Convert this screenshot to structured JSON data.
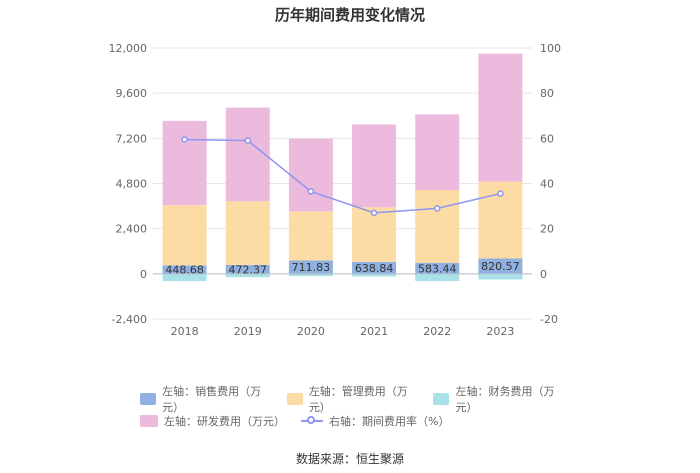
{
  "chart_data": {
    "type": "bar",
    "title": "历年期间费用变化情况",
    "categories": [
      "2018",
      "2019",
      "2020",
      "2021",
      "2022",
      "2023"
    ],
    "left_axis": {
      "min": -2400,
      "max": 12000,
      "ticks": [
        "12,000",
        "9,600",
        "7,200",
        "4,800",
        "2,400",
        "0",
        "-2,400"
      ]
    },
    "right_axis": {
      "min": -20,
      "max": 100,
      "ticks": [
        "100",
        "80",
        "60",
        "40",
        "20",
        "0",
        "-20"
      ]
    },
    "series": [
      {
        "name": "左轴：销售费用（万元）",
        "color": "#8fb0e0",
        "stack": true,
        "values": [
          448.68,
          472.37,
          711.83,
          638.84,
          583.44,
          820.57
        ],
        "labels": [
          "448.68",
          "472.37",
          "711.83",
          "638.84",
          "583.44",
          "820.57"
        ]
      },
      {
        "name": "左轴：管理费用（万元）",
        "color": "#fcdba4",
        "stack": true,
        "values": [
          3200,
          3380,
          2610,
          2900,
          3870,
          4080
        ]
      },
      {
        "name": "左轴：财务费用（万元）",
        "color": "#a8e2e6",
        "stack": true,
        "values": [
          -380,
          -180,
          -120,
          -140,
          -380,
          -300
        ]
      },
      {
        "name": "左轴：研发费用（万元）",
        "color": "#ebbadc",
        "stack": true,
        "values": [
          4480,
          4980,
          3860,
          4400,
          4020,
          6800
        ]
      },
      {
        "name": "右轴：期间费用率（%）",
        "color": "#8f95f0",
        "type": "line",
        "axis": "right",
        "values": [
          59.5,
          59.0,
          36.5,
          27.0,
          29.0,
          35.5
        ]
      }
    ],
    "legend": {
      "position": "bottom"
    },
    "grid": true
  },
  "source": "数据来源：恒生聚源"
}
